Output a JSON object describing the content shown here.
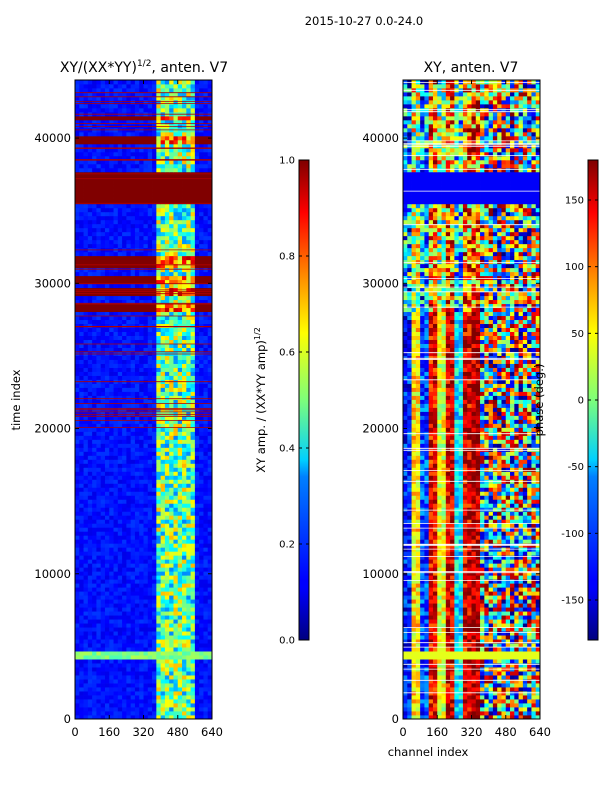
{
  "figure": {
    "suptitle": "2015-10-27 0.0-24.0"
  },
  "chart_data": [
    {
      "type": "heatmap",
      "title_main": "XY/(XX*YY)",
      "title_sup": "1/2",
      "title_rest": ", anten. V7",
      "xlabel": "",
      "ylabel": "time index",
      "xlim": [
        0,
        640
      ],
      "ylim": [
        0,
        44000
      ],
      "xticks": [
        "0",
        "160",
        "320",
        "480",
        "640"
      ],
      "yticks": [
        "0",
        "10000",
        "20000",
        "30000",
        "40000"
      ],
      "colorbar": {
        "label_main": "XY amp. / (XX*YY amp)",
        "label_sup": "1/2",
        "range": [
          0.0,
          1.0
        ],
        "ticks": [
          "0.0",
          "0.2",
          "0.4",
          "0.6",
          "0.8",
          "1.0"
        ],
        "colormap": "jet"
      }
    },
    {
      "type": "heatmap",
      "title_main": "XY, anten. V7",
      "xlabel": "channel index",
      "ylabel": "",
      "xlim": [
        0,
        640
      ],
      "ylim": [
        0,
        44000
      ],
      "xticks": [
        "0",
        "160",
        "320",
        "480",
        "640"
      ],
      "yticks": [
        "0",
        "10000",
        "20000",
        "30000",
        "40000"
      ],
      "colorbar": {
        "label_main": "phase (deg.)",
        "range": [
          -180,
          180
        ],
        "ticks": [
          "-150",
          "-100",
          "-50",
          "0",
          "50",
          "100",
          "150"
        ],
        "colormap": "jet"
      }
    }
  ]
}
